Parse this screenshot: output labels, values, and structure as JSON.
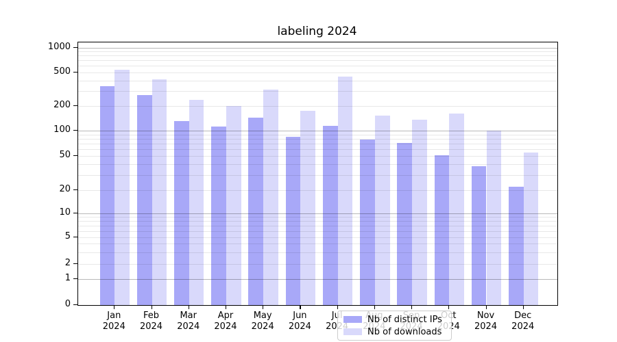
{
  "chart_data": {
    "type": "bar",
    "title": "labeling 2024",
    "categories": [
      "Jan",
      "Feb",
      "Mar",
      "Apr",
      "May",
      "Jun",
      "Jul",
      "Aug",
      "Sep",
      "Oct",
      "Nov",
      "Dec"
    ],
    "category_year": "2024",
    "series": [
      {
        "name": "Nb of distinct IPs",
        "color": "#a8a8f8",
        "values": [
          340,
          270,
          130,
          112,
          145,
          85,
          115,
          78,
          72,
          51,
          38,
          22
        ]
      },
      {
        "name": "Nb of downloads",
        "color": "#d9d9fb",
        "values": [
          540,
          415,
          235,
          200,
          310,
          175,
          445,
          152,
          137,
          163,
          100,
          55
        ]
      }
    ],
    "y_axis": {
      "scale": "symlog",
      "tick_labels": [
        "0",
        "1",
        "2",
        "5",
        "10",
        "20",
        "50",
        "100",
        "200",
        "500",
        "1000"
      ],
      "tick_values": [
        0,
        1,
        2,
        5,
        10,
        20,
        50,
        100,
        200,
        500,
        1000
      ],
      "range_top": 1100
    },
    "x_axis": {
      "tick_label_line2": "2024"
    },
    "legend": {
      "position": "lower center (inside plot)"
    },
    "grid": "horizontal, minor + major (drawn over bars)"
  }
}
